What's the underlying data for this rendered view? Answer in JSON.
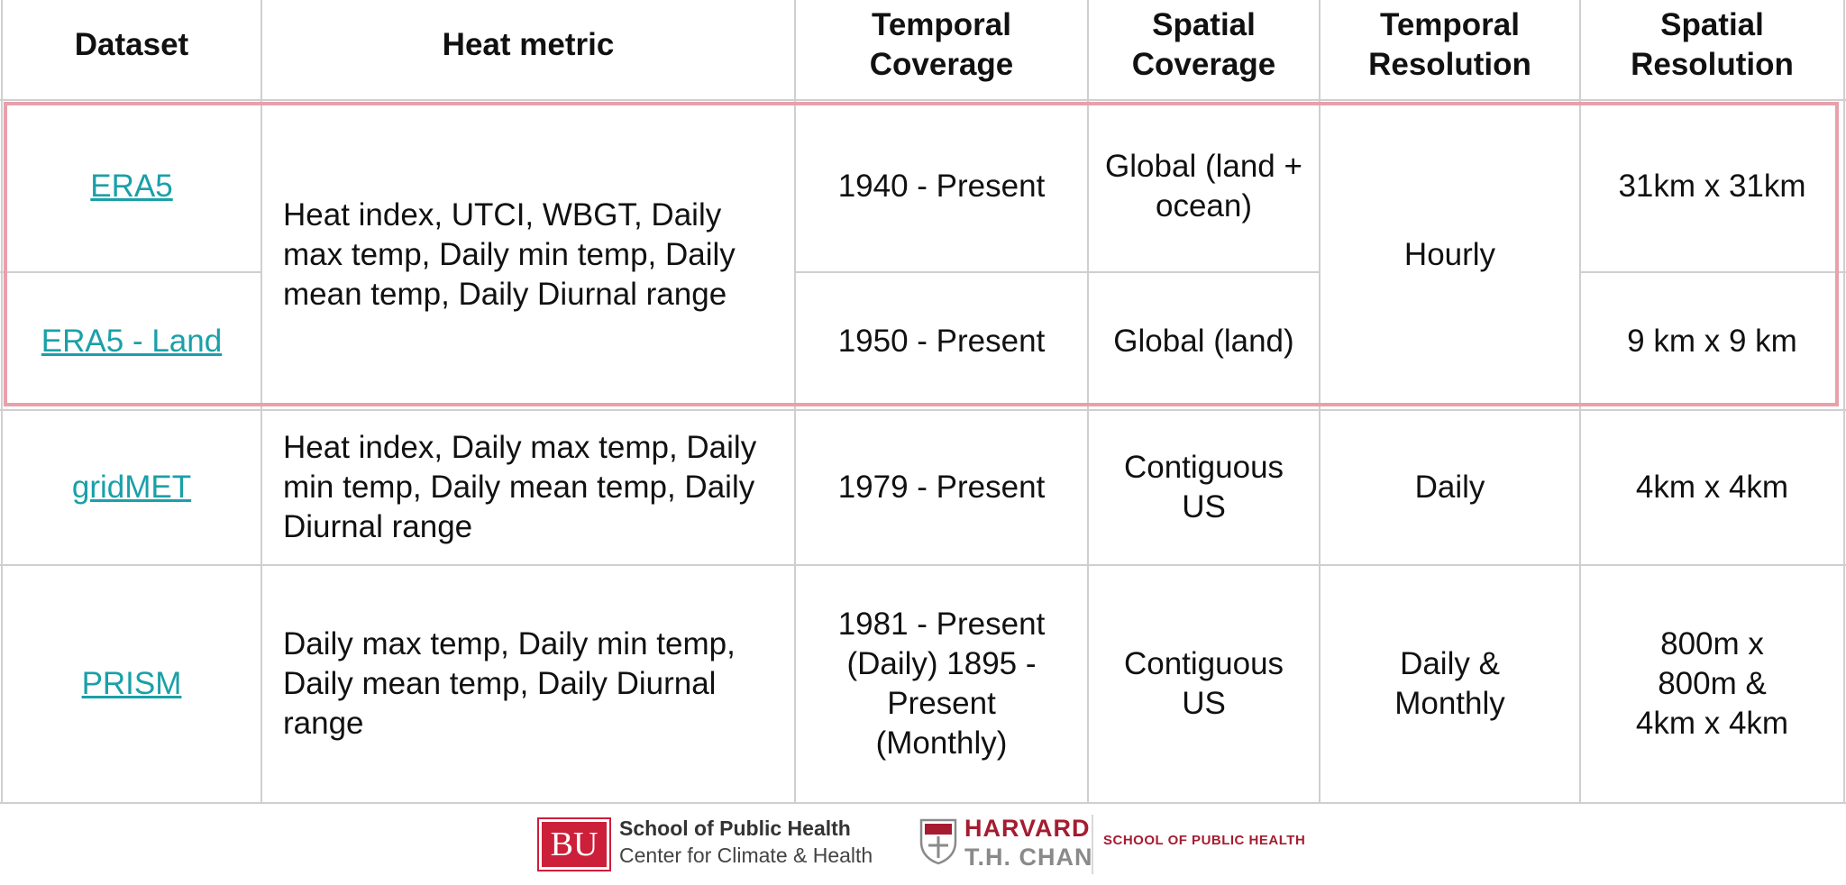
{
  "table": {
    "headers": [
      "Dataset",
      "Heat metric",
      "Temporal Coverage",
      "Spatial Coverage",
      "Temporal Resolution",
      "Spatial Resolution"
    ],
    "rows": [
      {
        "dataset": "ERA5",
        "heat_metric": "Heat index, UTCI, WBGT, Daily max temp, Daily min temp, Daily mean temp, Daily Diurnal range",
        "temporal_coverage": "1940 - Present",
        "spatial_coverage": "Global (land + ocean)",
        "temporal_resolution": "Hourly",
        "spatial_resolution": "31km x 31km"
      },
      {
        "dataset": "ERA5 - Land",
        "heat_metric": "Heat index, UTCI, WBGT, Daily max temp, Daily min temp, Daily mean temp, Daily Diurnal range",
        "temporal_coverage": "1950 - Present",
        "spatial_coverage": "Global (land)",
        "temporal_resolution": "Hourly",
        "spatial_resolution": "9 km x 9 km"
      },
      {
        "dataset": "gridMET",
        "heat_metric": "Heat index, Daily max temp, Daily min temp, Daily mean temp, Daily Diurnal range",
        "temporal_coverage": "1979 - Present",
        "spatial_coverage": "Contiguous US",
        "temporal_resolution": "Daily",
        "spatial_resolution": "4km x 4km"
      },
      {
        "dataset": "PRISM",
        "heat_metric": "Daily max temp, Daily min temp, Daily mean temp, Daily Diurnal range",
        "temporal_coverage": "1981 - Present (Daily) 1895 - Present (Monthly)",
        "spatial_coverage": "Contiguous US",
        "temporal_resolution": "Daily & Monthly",
        "spatial_resolution": "800m x 800m & 4km x 4km"
      }
    ]
  },
  "colors": {
    "link": "#1aa0a8",
    "highlight_border": "#e8a0aa",
    "bu_red": "#cc1f3a",
    "harvard_crimson": "#a51c30"
  },
  "footer": {
    "bu_logo_text": "BU",
    "bu_school": "School of Public Health",
    "bu_center": "Center for Climate & Health",
    "harvard": "HARVARD",
    "th_chan": "T.H. CHAN",
    "harvard_school": "SCHOOL OF PUBLIC HEALTH",
    "shield_icon": "harvard-shield-icon"
  }
}
